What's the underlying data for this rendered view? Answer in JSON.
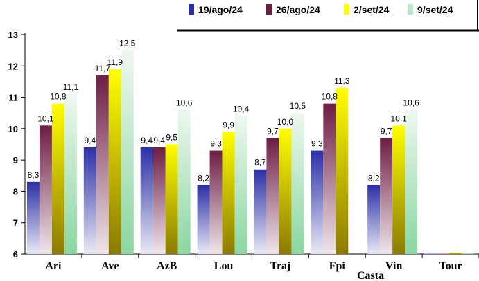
{
  "chart_data": {
    "type": "bar",
    "categories": [
      "Ari",
      "Ave",
      "AzB",
      "Lou",
      "Traj",
      "Fpi",
      "Vin",
      "Tour"
    ],
    "xlabel": "Casta",
    "ylabel": "",
    "title": "",
    "ylim": [
      6,
      13
    ],
    "yticks": [
      "6",
      "7",
      "8",
      "9",
      "10",
      "11",
      "12",
      "13"
    ],
    "legend_position": "top-right",
    "grid": false,
    "series": [
      {
        "name": "19/ago/24",
        "values": [
          8.3,
          9.4,
          9.4,
          8.2,
          8.7,
          9.3,
          8.2,
          6.0
        ],
        "labels": [
          "8,3",
          "9,4",
          "9,4",
          "8,2",
          "8,7",
          "9,3",
          "8,2",
          ""
        ],
        "color_top": "#2b2fa6",
        "color_bottom": "#e9e9f5"
      },
      {
        "name": "26/ago/24",
        "values": [
          10.1,
          11.7,
          9.4,
          9.3,
          9.7,
          10.8,
          9.7,
          6.0
        ],
        "labels": [
          "10,1",
          "11,7",
          "9,4",
          "9,3",
          "9,7",
          "10,8",
          "9,7",
          ""
        ],
        "color_top": "#6e1d44",
        "color_bottom": "#efe6ea"
      },
      {
        "name": "2/set/24",
        "values": [
          10.8,
          11.9,
          9.5,
          9.9,
          10.0,
          11.3,
          10.1,
          6.0
        ],
        "labels": [
          "10,8",
          "11,9",
          "9,5",
          "9,9",
          "10,0",
          "11,3",
          "10,1",
          ""
        ],
        "color_top": "#ffff00",
        "color_bottom": "#8c7a00"
      },
      {
        "name": "9/set/24",
        "values": [
          11.1,
          12.5,
          10.6,
          10.4,
          10.5,
          null,
          10.6,
          6.0
        ],
        "labels": [
          "11,1",
          "12,5",
          "10,6",
          "10,4",
          "10,5",
          "",
          "10,6",
          ""
        ],
        "color_top": "#edf8ef",
        "color_bottom": "#8ad6a0"
      }
    ]
  }
}
